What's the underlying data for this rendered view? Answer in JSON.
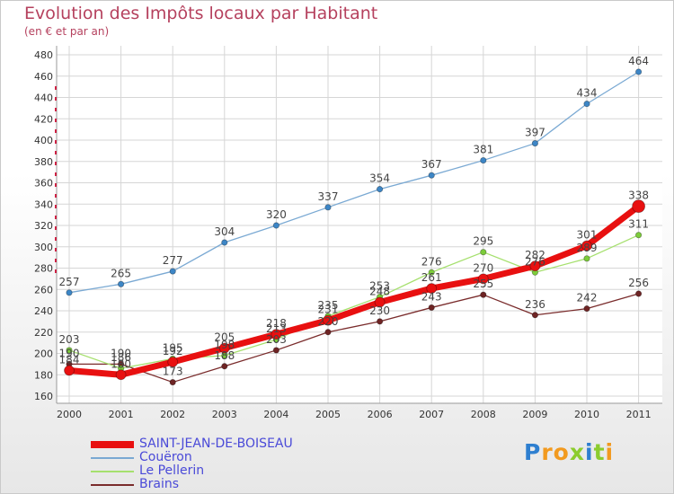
{
  "chart_data": {
    "type": "line",
    "title": "Evolution des Impôts locaux par Habitant",
    "subtitle": "(en € et par an)",
    "x": [
      "2000",
      "2001",
      "2002",
      "2003",
      "2004",
      "2005",
      "2006",
      "2007",
      "2008",
      "2009",
      "2010",
      "2011"
    ],
    "yticks": [
      160,
      180,
      200,
      220,
      240,
      260,
      280,
      300,
      320,
      340,
      360,
      380,
      400,
      420,
      440,
      460,
      480
    ],
    "ylim": [
      160,
      480
    ],
    "series": [
      {
        "name": "Brains",
        "color": "#7a2c2c",
        "marker": "#6e2424",
        "width": 1.3,
        "markerR": 3.2,
        "values": [
          190,
          190,
          173,
          188,
          203,
          220,
          230,
          243,
          255,
          236,
          242,
          256
        ]
      },
      {
        "name": "Le Pellerin",
        "color": "#a6e06e",
        "marker": "#7ccc3a",
        "width": 1.3,
        "markerR": 3.2,
        "values": [
          203,
          186,
          195,
          198,
          213,
          235,
          253,
          276,
          295,
          276,
          289,
          311
        ]
      },
      {
        "name": "Couëron",
        "color": "#7aa9d3",
        "marker": "#3d86c6",
        "width": 1.3,
        "markerR": 3.2,
        "values": [
          257,
          265,
          277,
          304,
          320,
          337,
          354,
          367,
          381,
          397,
          434,
          464
        ]
      },
      {
        "name": "SAINT-JEAN-DE-BOISEAU",
        "color": "#e81010",
        "marker": "#e81010",
        "width": 7,
        "markerR": 5.5,
        "lastR": 7,
        "values": [
          184,
          180,
          192,
          205,
          218,
          231,
          248,
          261,
          270,
          282,
          301,
          338
        ]
      }
    ],
    "legend": [
      "SAINT-JEAN-DE-BOISEAU",
      "Couëron",
      "Le Pellerin",
      "Brains"
    ]
  },
  "branding": {
    "letters": [
      "P",
      "r",
      "o",
      "x",
      "i",
      "t",
      "i"
    ],
    "colors": [
      "#2e7fd0",
      "#f29a1f",
      "#f29a1f",
      "#8ccc2e",
      "#2e7fd0",
      "#8ccc2e",
      "#f29a1f"
    ]
  }
}
